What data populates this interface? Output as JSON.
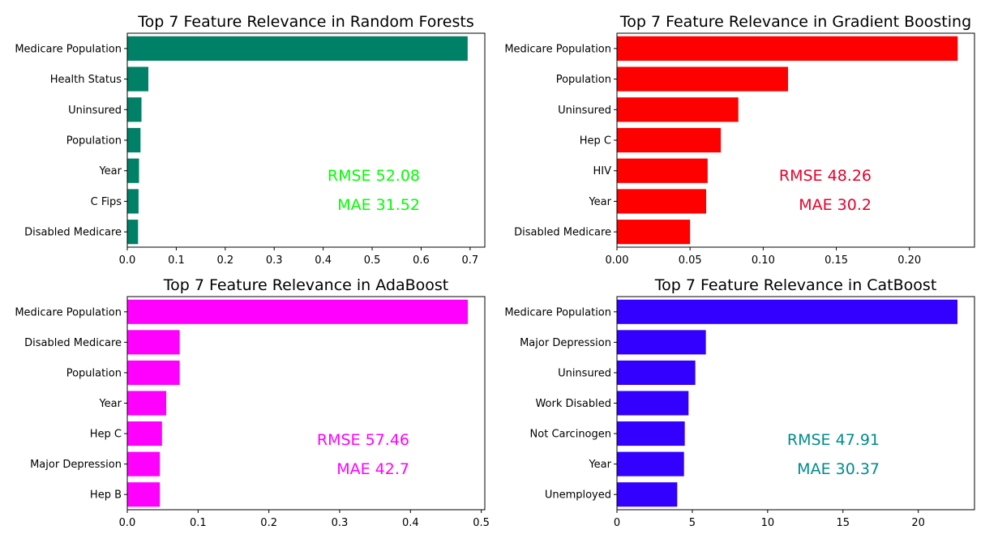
{
  "chart_data": [
    {
      "type": "bar",
      "orientation": "horizontal",
      "title": "Top 7 Feature Relevance in Random Forests",
      "categories": [
        "Medicare Population",
        "Health Status",
        "Uninsured",
        "Population",
        "Year",
        "C Fips",
        "Disabled Medicare"
      ],
      "values": [
        0.695,
        0.043,
        0.029,
        0.027,
        0.024,
        0.023,
        0.022
      ],
      "xlim": [
        0,
        0.73
      ],
      "xticks": [
        "0.0",
        "0.1",
        "0.2",
        "0.3",
        "0.4",
        "0.5",
        "0.6",
        "0.7"
      ],
      "xtick_values": [
        0,
        0.1,
        0.2,
        0.3,
        0.4,
        0.5,
        0.6,
        0.7
      ],
      "color": "#008066",
      "rmse": "RMSE 52.08",
      "mae": "MAE 31.52",
      "metric_color": "#00ff00"
    },
    {
      "type": "bar",
      "orientation": "horizontal",
      "title": "Top 7 Feature Relevance in Gradient Boosting",
      "categories": [
        "Medicare Population",
        "Population",
        "Uninsured",
        "Hep C",
        "HIV",
        "Year",
        "Disabled Medicare"
      ],
      "values": [
        0.233,
        0.117,
        0.083,
        0.071,
        0.062,
        0.061,
        0.05
      ],
      "xlim": [
        0,
        0.2445
      ],
      "xticks": [
        "0.00",
        "0.05",
        "0.10",
        "0.15",
        "0.20"
      ],
      "xtick_values": [
        0,
        0.05,
        0.1,
        0.15,
        0.2
      ],
      "color": "#ff0000",
      "rmse": "RMSE 48.26",
      "mae": "MAE 30.2",
      "metric_color": "#e8002a"
    },
    {
      "type": "bar",
      "orientation": "horizontal",
      "title": "Top 7 Feature Relevance in AdaBoost",
      "categories": [
        "Medicare Population",
        "Disabled Medicare",
        "Population",
        "Year",
        "Hep C",
        "Major Depression",
        "Hep B"
      ],
      "values": [
        0.481,
        0.074,
        0.074,
        0.055,
        0.049,
        0.046,
        0.046
      ],
      "xlim": [
        0,
        0.505
      ],
      "xticks": [
        "0.0",
        "0.1",
        "0.2",
        "0.3",
        "0.4",
        "0.5"
      ],
      "xtick_values": [
        0,
        0.1,
        0.2,
        0.3,
        0.4,
        0.5
      ],
      "color": "#ff00ff",
      "rmse": "RMSE 57.46",
      "mae": "MAE 42.7",
      "metric_color": "#ff00ff"
    },
    {
      "type": "bar",
      "orientation": "horizontal",
      "title": "Top 7 Feature Relevance in CatBoost",
      "categories": [
        "Medicare Population",
        "Major Depression",
        "Uninsured",
        "Work Disabled",
        "Not Carcinogen",
        "Year",
        "Unemployed"
      ],
      "values": [
        22.6,
        5.9,
        5.2,
        4.75,
        4.5,
        4.45,
        4.0
      ],
      "xlim": [
        0,
        23.73
      ],
      "xticks": [
        "0",
        "5",
        "10",
        "15",
        "20"
      ],
      "xtick_values": [
        0,
        5,
        10,
        15,
        20
      ],
      "color": "#3300ff",
      "rmse": "RMSE 47.91",
      "mae": "MAE 30.37",
      "metric_color": "#008b8b"
    }
  ]
}
